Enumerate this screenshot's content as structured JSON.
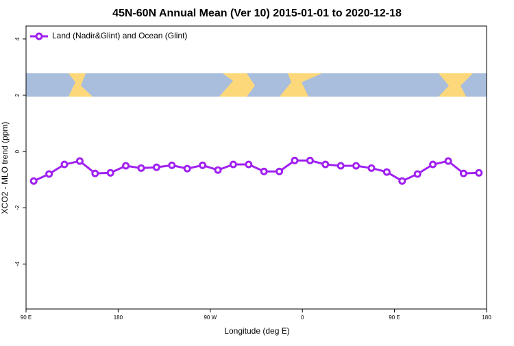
{
  "chart_data": {
    "type": "line",
    "title": "45N-60N Annual Mean (Ver 10)   2015-01-01 to 2020-12-18",
    "x_label": "Longitude (deg E)",
    "y_label": "XCO2 - MLO trend (ppm)",
    "legend_position": "top-left",
    "xlim": [
      90,
      540
    ],
    "ylim": [
      -5.6,
      4.46
    ],
    "xticks": [
      {
        "value": 90,
        "label": "90 E"
      },
      180,
      {
        "value": 270,
        "label": "90 W"
      },
      {
        "value": 360,
        "label": "0"
      },
      {
        "value": 450,
        "label": "90 E"
      },
      {
        "value": 540,
        "label": "180"
      }
    ],
    "yticks": [
      -4,
      -2,
      0,
      2,
      4
    ],
    "x": [
      97.5,
      112.5,
      127.5,
      142.5,
      157.5,
      172.5,
      187.5,
      202.5,
      217.5,
      232.5,
      247.5,
      262.5,
      277.5,
      292.5,
      307.5,
      322.5,
      337.5,
      352.5,
      367.5,
      382.5,
      397.5,
      412.5,
      427.5,
      442.5,
      457.5,
      472.5,
      487.5,
      502.5,
      517.5,
      532.5
    ],
    "series": [
      {
        "name": "Land (Nadir&Glint) and Ocean (Glint)",
        "color": "#a020f0",
        "values": [
          -1.05,
          -0.8,
          -0.46,
          -0.34,
          -0.78,
          -0.76,
          -0.51,
          -0.59,
          -0.56,
          -0.49,
          -0.61,
          -0.49,
          -0.66,
          -0.46,
          -0.46,
          -0.71,
          -0.71,
          -0.32,
          -0.32,
          -0.46,
          -0.51,
          -0.51,
          -0.59,
          -0.73,
          -1.05,
          -0.8,
          -0.46,
          -0.34,
          -0.78,
          -0.76
        ]
      }
    ]
  }
}
